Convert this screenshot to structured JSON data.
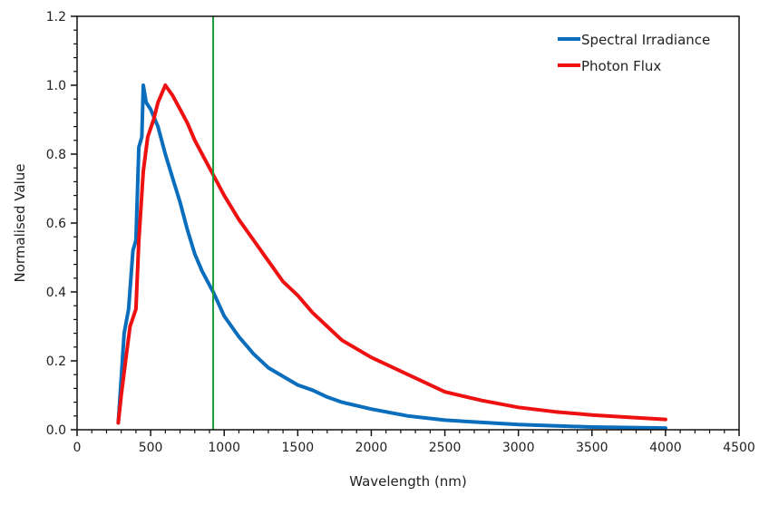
{
  "chart_data": {
    "type": "line",
    "title": "",
    "xlabel": "Wavelength (nm)",
    "ylabel": "Normalised Value",
    "xlim": [
      0,
      4500
    ],
    "ylim": [
      0,
      1.2
    ],
    "xticks": [
      0,
      500,
      1000,
      1500,
      2000,
      2500,
      3000,
      3500,
      4000,
      4500
    ],
    "yticks": [
      "0.0",
      "0.2",
      "0.4",
      "0.6",
      "0.8",
      "1.0",
      "1.2"
    ],
    "grid": false,
    "legend_position": "top-right",
    "vertical_marker": {
      "x": 925,
      "color": "#1a9a3a"
    },
    "series": [
      {
        "name": "Spectral Irradiance",
        "color": "#0a6ebd",
        "x": [
          280,
          300,
          320,
          350,
          380,
          400,
          420,
          440,
          450,
          470,
          500,
          550,
          600,
          650,
          700,
          750,
          800,
          850,
          900,
          925,
          1000,
          1100,
          1200,
          1300,
          1400,
          1500,
          1600,
          1700,
          1800,
          2000,
          2250,
          2500,
          3000,
          3500,
          4000
        ],
        "y": [
          0.02,
          0.15,
          0.28,
          0.35,
          0.52,
          0.55,
          0.82,
          0.85,
          1.0,
          0.95,
          0.93,
          0.88,
          0.8,
          0.73,
          0.66,
          0.58,
          0.51,
          0.46,
          0.42,
          0.4,
          0.33,
          0.27,
          0.22,
          0.18,
          0.155,
          0.13,
          0.115,
          0.095,
          0.08,
          0.06,
          0.04,
          0.028,
          0.015,
          0.008,
          0.005
        ]
      },
      {
        "name": "Photon Flux",
        "color": "#ee1111",
        "x": [
          280,
          300,
          330,
          360,
          400,
          420,
          450,
          480,
          520,
          550,
          600,
          650,
          700,
          750,
          800,
          900,
          925,
          1000,
          1100,
          1200,
          1300,
          1400,
          1500,
          1600,
          1700,
          1800,
          1900,
          2000,
          2250,
          2500,
          2750,
          3000,
          3250,
          3500,
          3750,
          4000
        ],
        "y": [
          0.02,
          0.1,
          0.2,
          0.3,
          0.35,
          0.55,
          0.75,
          0.85,
          0.9,
          0.95,
          1.0,
          0.97,
          0.93,
          0.89,
          0.84,
          0.76,
          0.74,
          0.68,
          0.61,
          0.55,
          0.49,
          0.43,
          0.39,
          0.34,
          0.3,
          0.26,
          0.235,
          0.21,
          0.16,
          0.11,
          0.085,
          0.065,
          0.052,
          0.043,
          0.036,
          0.03
        ]
      }
    ]
  }
}
